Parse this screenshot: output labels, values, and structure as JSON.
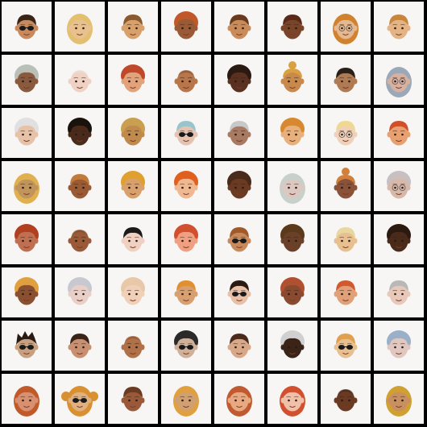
{
  "grid": {
    "rows": 8,
    "cols": 8,
    "background_color": "#000000",
    "cell_background": "#f7f6f5",
    "faces": [
      {
        "skin": "#c88a5c",
        "hair": "#3a2416",
        "style": "short",
        "glasses": "sun"
      },
      {
        "skin": "#e9c18e",
        "hair": "#e2c070",
        "style": "long",
        "glasses": "none"
      },
      {
        "skin": "#d8a06a",
        "hair": "#8a5a2e",
        "style": "short",
        "glasses": "none"
      },
      {
        "skin": "#9a5a36",
        "hair": "#c0582a",
        "style": "curly",
        "glasses": "none"
      },
      {
        "skin": "#c98b5a",
        "hair": "#6a3a1c",
        "style": "short",
        "glasses": "none"
      },
      {
        "skin": "#7a4428",
        "hair": "#5a2a18",
        "style": "short",
        "glasses": "none"
      },
      {
        "skin": "#e6b890",
        "hair": "#d0822e",
        "style": "long",
        "glasses": "clear"
      },
      {
        "skin": "#e4b484",
        "hair": "#c8863c",
        "style": "short",
        "glasses": "none"
      },
      {
        "skin": "#8a5a3e",
        "hair": "#b8c0b8",
        "style": "curly",
        "glasses": "none"
      },
      {
        "skin": "#f0d2c4",
        "hair": "#e8e0dc",
        "style": "bald",
        "glasses": "none"
      },
      {
        "skin": "#e2a27a",
        "hair": "#c0482a",
        "style": "curly",
        "glasses": "none"
      },
      {
        "skin": "#b8764a",
        "hair": "#7a4a2a",
        "style": "bald",
        "glasses": "none"
      },
      {
        "skin": "#5a3020",
        "hair": "#2a1a12",
        "style": "curly",
        "glasses": "none"
      },
      {
        "skin": "#c88a4c",
        "hair": "#d8a040",
        "style": "bun",
        "glasses": "none"
      },
      {
        "skin": "#b07a52",
        "hair": "#2a2018",
        "style": "short",
        "glasses": "none"
      },
      {
        "skin": "#d8b0a0",
        "hair": "#9aa8b8",
        "style": "long",
        "glasses": "clear"
      },
      {
        "skin": "#e6c2a8",
        "hair": "#e0e0e0",
        "style": "curly",
        "glasses": "none"
      },
      {
        "skin": "#4a2a1a",
        "hair": "#1a120c",
        "style": "curly",
        "glasses": "none"
      },
      {
        "skin": "#c08a4c",
        "hair": "#c8a050",
        "style": "curly",
        "glasses": "none"
      },
      {
        "skin": "#e4c4b0",
        "hair": "#9ac4cc",
        "style": "short",
        "glasses": "sun"
      },
      {
        "skin": "#a87a62",
        "hair": "#c8c8c8",
        "style": "short",
        "glasses": "none"
      },
      {
        "skin": "#e8b07a",
        "hair": "#d8882e",
        "style": "curly",
        "glasses": "none"
      },
      {
        "skin": "#f0d0b8",
        "hair": "#f0d890",
        "style": "short",
        "glasses": "clear"
      },
      {
        "skin": "#e8a070",
        "hair": "#d05028",
        "style": "short",
        "glasses": "none"
      },
      {
        "skin": "#c0945a",
        "hair": "#e0b050",
        "style": "long",
        "glasses": "none"
      },
      {
        "skin": "#9a5a34",
        "hair": "#c07a3a",
        "style": "short",
        "glasses": "none"
      },
      {
        "skin": "#d8a06a",
        "hair": "#e0a030",
        "style": "curly",
        "glasses": "none"
      },
      {
        "skin": "#f0b890",
        "hair": "#e06020",
        "style": "curly",
        "glasses": "none"
      },
      {
        "skin": "#6a3a22",
        "hair": "#4a2a1a",
        "style": "curly",
        "glasses": "none"
      },
      {
        "skin": "#dcc8c0",
        "hair": "#c8d0cc",
        "style": "long",
        "glasses": "none"
      },
      {
        "skin": "#8a5238",
        "hair": "#d0803a",
        "style": "bun",
        "glasses": "none"
      },
      {
        "skin": "#d8b8a8",
        "hair": "#c8c0c0",
        "style": "curly",
        "glasses": "clear"
      },
      {
        "skin": "#c07050",
        "hair": "#b04020",
        "style": "curly",
        "glasses": "none"
      },
      {
        "skin": "#9a5a38",
        "hair": "#7a4a2a",
        "style": "bald",
        "glasses": "none"
      },
      {
        "skin": "#f0d0c0",
        "hair": "#1a1a1a",
        "style": "short",
        "glasses": "none"
      },
      {
        "skin": "#f0a080",
        "hair": "#d05030",
        "style": "curly",
        "glasses": "none"
      },
      {
        "skin": "#c88a5a",
        "hair": "#a05a2a",
        "style": "short",
        "glasses": "sun"
      },
      {
        "skin": "#6a4028",
        "hair": "#5a3a1a",
        "style": "curly",
        "glasses": "none"
      },
      {
        "skin": "#e8c090",
        "hair": "#e8d8a0",
        "style": "short",
        "glasses": "none"
      },
      {
        "skin": "#4a2a1a",
        "hair": "#2a1a10",
        "style": "curly",
        "glasses": "none"
      },
      {
        "skin": "#8a5030",
        "hair": "#e0a040",
        "style": "curly",
        "glasses": "none"
      },
      {
        "skin": "#e8d0c8",
        "hair": "#c8c8d0",
        "style": "curly",
        "glasses": "none"
      },
      {
        "skin": "#f0d0b8",
        "hair": "#e8c8a8",
        "style": "curly",
        "glasses": "none"
      },
      {
        "skin": "#d8a070",
        "hair": "#e09030",
        "style": "short",
        "glasses": "none"
      },
      {
        "skin": "#e8c0a8",
        "hair": "#2a1a12",
        "style": "short",
        "glasses": "sun"
      },
      {
        "skin": "#8a4a30",
        "hair": "#b05030",
        "style": "curly",
        "glasses": "none"
      },
      {
        "skin": "#e0a078",
        "hair": "#d05a30",
        "style": "short",
        "glasses": "none"
      },
      {
        "skin": "#e8c8b8",
        "hair": "#b8b8b8",
        "style": "short",
        "glasses": "none"
      },
      {
        "skin": "#c8a080",
        "hair": "#2a1a12",
        "style": "spiky",
        "glasses": "sun"
      },
      {
        "skin": "#c89070",
        "hair": "#3a2418",
        "style": "short",
        "glasses": "none"
      },
      {
        "skin": "#b07048",
        "hair": "#8a4a2a",
        "style": "bald",
        "glasses": "none"
      },
      {
        "skin": "#d0b098",
        "hair": "#2a2a2a",
        "style": "curly",
        "glasses": "sun"
      },
      {
        "skin": "#d8a888",
        "hair": "#4a2a1a",
        "style": "short",
        "glasses": "none"
      },
      {
        "skin": "#3a2418",
        "hair": "#d0d0d0",
        "style": "curly",
        "glasses": "none"
      },
      {
        "skin": "#e8c090",
        "hair": "#e0a050",
        "style": "short",
        "glasses": "sun"
      },
      {
        "skin": "#e0c8c0",
        "hair": "#9ab0c8",
        "style": "curly",
        "glasses": "none"
      },
      {
        "skin": "#d89070",
        "hair": "#c05a2a",
        "style": "long",
        "glasses": "none"
      },
      {
        "skin": "#e0b080",
        "hair": "#d89030",
        "style": "pigtails",
        "glasses": "sun"
      },
      {
        "skin": "#9a5a3a",
        "hair": "#6a3a22",
        "style": "short",
        "glasses": "none"
      },
      {
        "skin": "#d0a070",
        "hair": "#e0a040",
        "style": "long",
        "glasses": "none"
      },
      {
        "skin": "#e8a880",
        "hair": "#c05a30",
        "style": "long",
        "glasses": "none"
      },
      {
        "skin": "#f0c0a8",
        "hair": "#d05030",
        "style": "long",
        "glasses": "none"
      },
      {
        "skin": "#6a3a22",
        "hair": "#3a2418",
        "style": "bald",
        "glasses": "none"
      },
      {
        "skin": "#c89060",
        "hair": "#d0a030",
        "style": "long",
        "glasses": "none"
      }
    ]
  }
}
